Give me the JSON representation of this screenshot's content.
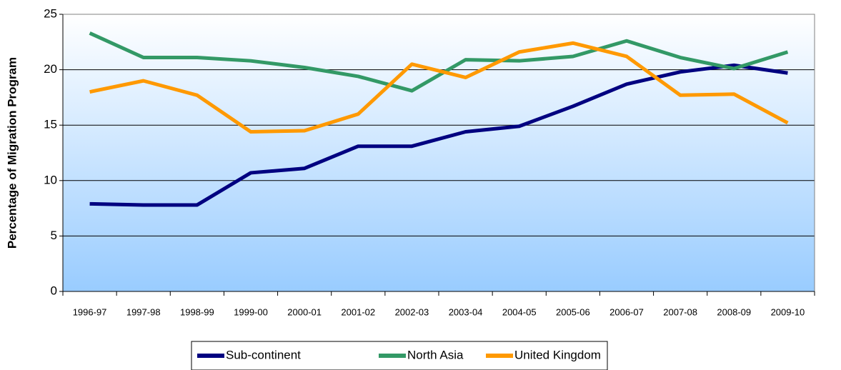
{
  "chart_data": {
    "type": "line",
    "y_label": "Percentage of Migration Program",
    "categories": [
      "1996-97",
      "1997-98",
      "1998-99",
      "1999-00",
      "2000-01",
      "2001-02",
      "2002-03",
      "2003-04",
      "2004-05",
      "2005-06",
      "2006-07",
      "2007-08",
      "2008-09",
      "2009-10"
    ],
    "series": [
      {
        "name": "Sub-continent",
        "color": "#000080",
        "values": [
          7.9,
          7.8,
          7.8,
          10.7,
          11.1,
          13.1,
          13.1,
          14.4,
          14.9,
          16.7,
          18.7,
          19.8,
          20.4,
          19.7
        ]
      },
      {
        "name": "North Asia",
        "color": "#339966",
        "values": [
          23.3,
          21.1,
          21.1,
          20.8,
          20.2,
          19.4,
          18.1,
          20.9,
          20.8,
          21.2,
          22.6,
          21.1,
          20.1,
          21.6
        ]
      },
      {
        "name": "United Kingdom",
        "color": "#ff9900",
        "values": [
          18.0,
          19.0,
          17.7,
          14.4,
          14.5,
          16.0,
          20.5,
          19.3,
          21.6,
          22.4,
          21.2,
          17.7,
          17.8,
          15.2
        ]
      }
    ],
    "ylim": [
      0,
      25
    ],
    "yticks": [
      0,
      5,
      10,
      15,
      20,
      25
    ],
    "grid": true,
    "legend": "bottom"
  }
}
